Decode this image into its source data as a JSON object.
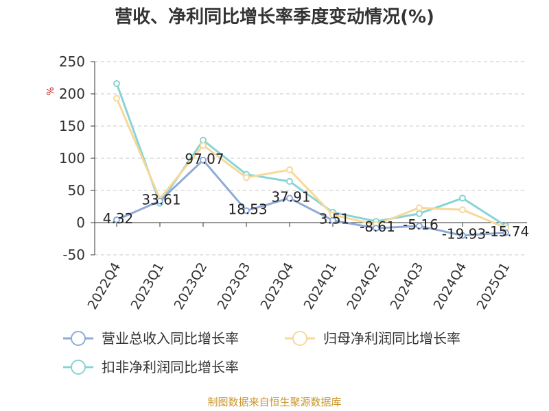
{
  "title": "营收、净利同比增长率季度变动情况(%)",
  "source": "制图数据来自恒生聚源数据库",
  "chart_data": {
    "type": "line",
    "title": "营收、净利同比增长率季度变动情况(%)",
    "ylabel": "%",
    "ylim": [
      -50,
      250
    ],
    "yticks": [
      -50,
      0,
      50,
      100,
      150,
      200,
      250
    ],
    "grid": true,
    "legend_position": "bottom",
    "categories": [
      "2022Q4",
      "2023Q1",
      "2023Q2",
      "2023Q3",
      "2023Q4",
      "2024Q1",
      "2024Q2",
      "2024Q3",
      "2024Q4",
      "2025Q1"
    ],
    "series": [
      {
        "name": "营业总收入同比增长率",
        "color": "#8eaad6",
        "values": [
          4.32,
          33.61,
          97.07,
          18.53,
          37.91,
          3.51,
          -8.61,
          -5.16,
          -19.93,
          -15.74
        ],
        "labels": [
          "4.32",
          "33.61",
          "97.07",
          "18.53",
          "37.91",
          "3.51",
          "-8.61",
          "-5.16",
          "-19.93",
          "-15.74"
        ]
      },
      {
        "name": "归母净利润同比增长率",
        "color": "#f6d89a",
        "values": [
          193,
          37,
          120,
          70,
          82,
          12,
          -3,
          23,
          20,
          -8
        ]
      },
      {
        "name": "扣非净利润同比增长率",
        "color": "#88d4d4",
        "values": [
          216,
          30,
          128,
          75,
          64,
          16,
          2,
          14,
          38,
          -5
        ]
      }
    ]
  }
}
